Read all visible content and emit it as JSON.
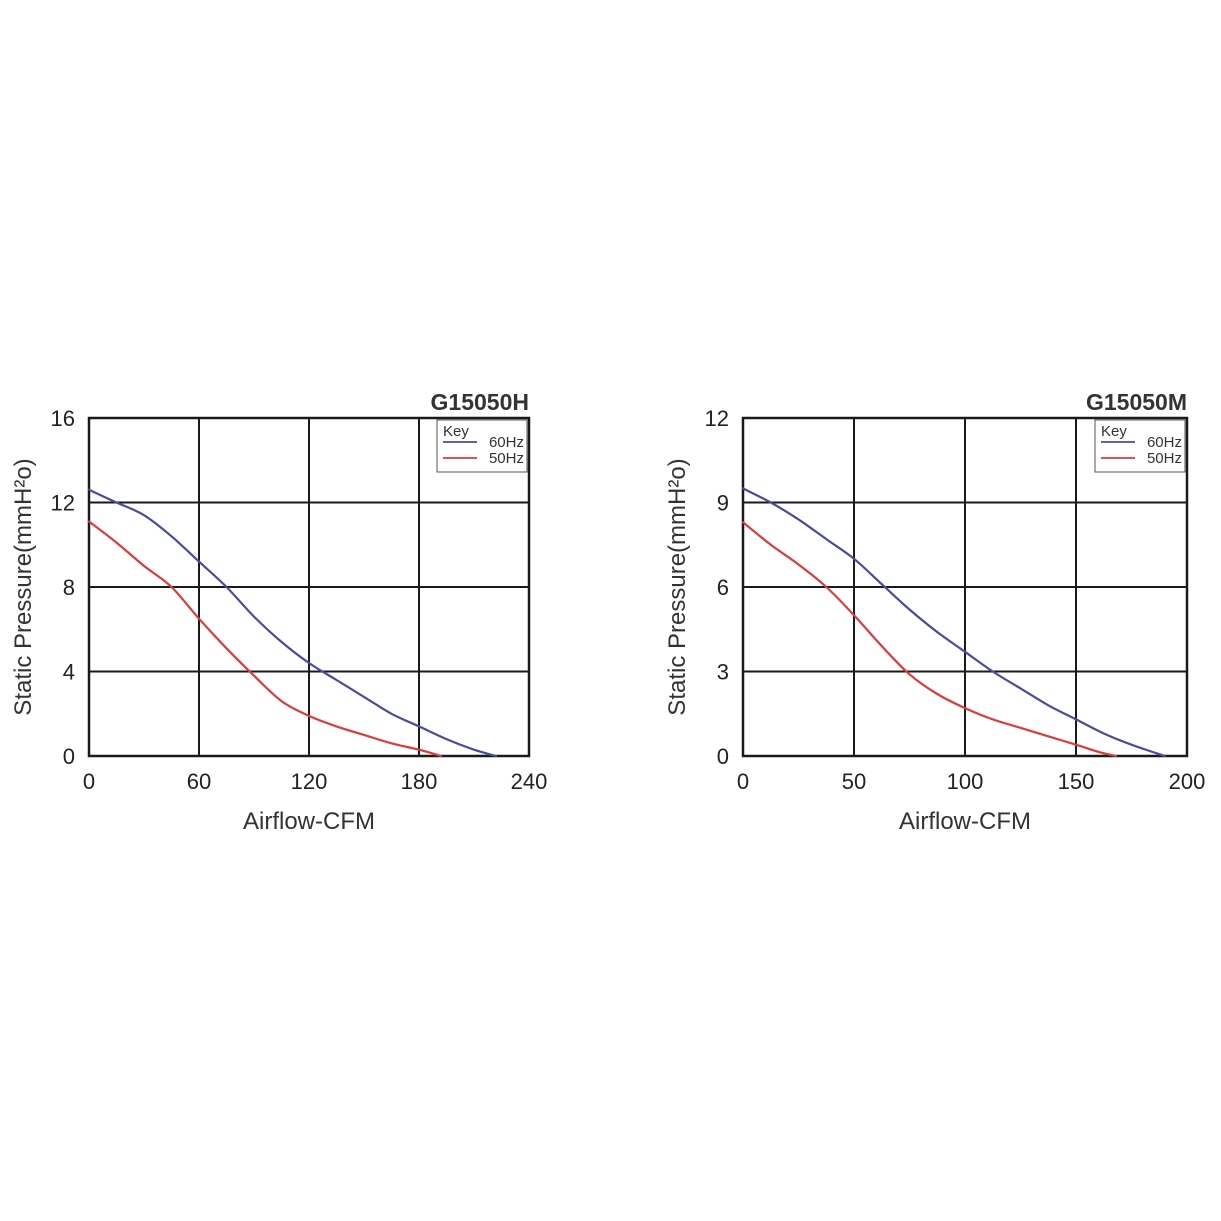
{
  "chart_data": [
    {
      "type": "line",
      "title": "G15050H",
      "xlabel": "Airflow-CFM",
      "ylabel": "Static Pressure(mmH²o)",
      "xlim": [
        0,
        240
      ],
      "ylim": [
        0,
        16
      ],
      "xticks": [
        0,
        60,
        120,
        180,
        240
      ],
      "yticks": [
        0,
        4,
        8,
        12,
        16
      ],
      "grid": true,
      "legend": {
        "title": "Key",
        "position": "top-right"
      },
      "series": [
        {
          "name": "60Hz",
          "color": "#4a4aa0",
          "points": [
            [
              0,
              12.6
            ],
            [
              15,
              12.0
            ],
            [
              30,
              11.4
            ],
            [
              45,
              10.4
            ],
            [
              60,
              9.2
            ],
            [
              75,
              8.0
            ],
            [
              90,
              6.6
            ],
            [
              105,
              5.4
            ],
            [
              120,
              4.4
            ],
            [
              135,
              3.6
            ],
            [
              150,
              2.8
            ],
            [
              165,
              2.0
            ],
            [
              180,
              1.4
            ],
            [
              195,
              0.8
            ],
            [
              210,
              0.3
            ],
            [
              222,
              0
            ]
          ]
        },
        {
          "name": "50Hz",
          "color": "#dd3a3a",
          "points": [
            [
              0,
              11.1
            ],
            [
              15,
              10.1
            ],
            [
              30,
              9.0
            ],
            [
              45,
              8.0
            ],
            [
              60,
              6.5
            ],
            [
              75,
              5.1
            ],
            [
              90,
              3.8
            ],
            [
              105,
              2.6
            ],
            [
              120,
              1.9
            ],
            [
              135,
              1.4
            ],
            [
              150,
              1.0
            ],
            [
              165,
              0.6
            ],
            [
              180,
              0.3
            ],
            [
              192,
              0
            ]
          ]
        }
      ]
    },
    {
      "type": "line",
      "title": "G15050M",
      "xlabel": "Airflow-CFM",
      "ylabel": "Static Pressure(mmH²o)",
      "xlim": [
        0,
        200
      ],
      "ylim": [
        0,
        12
      ],
      "xticks": [
        0,
        50,
        100,
        150,
        200
      ],
      "yticks": [
        0,
        3,
        6,
        9,
        12
      ],
      "grid": true,
      "legend": {
        "title": "Key",
        "position": "top-right"
      },
      "series": [
        {
          "name": "60Hz",
          "color": "#4a4aa0",
          "points": [
            [
              0,
              9.5
            ],
            [
              12.5,
              9.0
            ],
            [
              25,
              8.4
            ],
            [
              37.5,
              7.7
            ],
            [
              50,
              7.0
            ],
            [
              62.5,
              6.1
            ],
            [
              75,
              5.2
            ],
            [
              87.5,
              4.4
            ],
            [
              100,
              3.7
            ],
            [
              112.5,
              3.0
            ],
            [
              125,
              2.4
            ],
            [
              137.5,
              1.8
            ],
            [
              150,
              1.3
            ],
            [
              162.5,
              0.8
            ],
            [
              175,
              0.4
            ],
            [
              190,
              0
            ]
          ]
        },
        {
          "name": "50Hz",
          "color": "#dd3a3a",
          "points": [
            [
              0,
              8.3
            ],
            [
              12.5,
              7.5
            ],
            [
              25,
              6.8
            ],
            [
              37.5,
              6.0
            ],
            [
              50,
              5.0
            ],
            [
              62.5,
              3.9
            ],
            [
              75,
              2.9
            ],
            [
              87.5,
              2.2
            ],
            [
              100,
              1.7
            ],
            [
              112.5,
              1.3
            ],
            [
              125,
              1.0
            ],
            [
              137.5,
              0.7
            ],
            [
              150,
              0.4
            ],
            [
              160,
              0.15
            ],
            [
              168,
              0
            ]
          ]
        }
      ]
    }
  ]
}
